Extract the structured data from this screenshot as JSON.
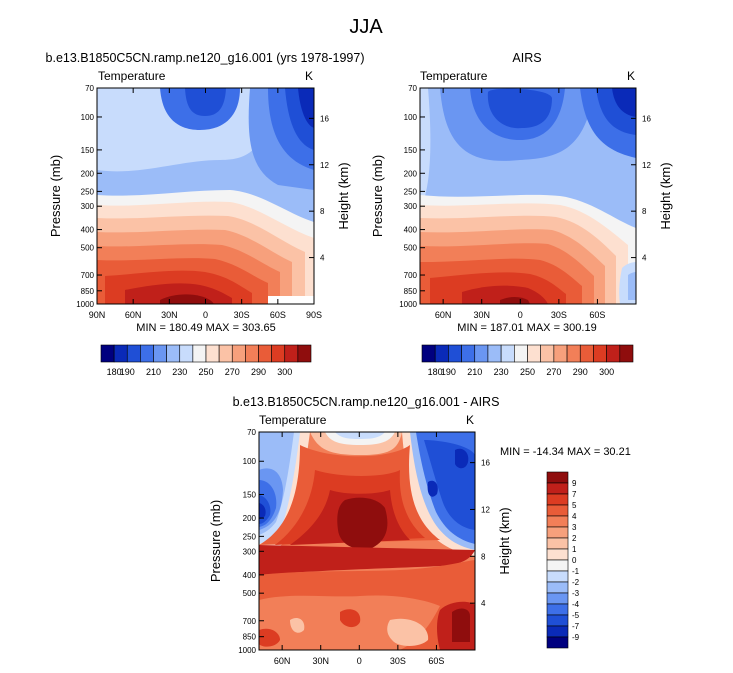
{
  "figure": {
    "title": "JJA"
  },
  "colors": {
    "abs_scale": [
      "#00007f",
      "#0a2ab8",
      "#1f4fd6",
      "#3d6fe8",
      "#6a96f2",
      "#9bbcf8",
      "#c8dcfc",
      "#f4f4f4",
      "#fde0d0",
      "#fbc2a6",
      "#f7a07c",
      "#f27f58",
      "#e95c38",
      "#dc3c22",
      "#c0201a",
      "#8f0d0d"
    ],
    "diff_scale": [
      "#00007f",
      "#0a2ab8",
      "#1f4fd6",
      "#3d6fe8",
      "#6a96f2",
      "#9bbcf8",
      "#c8dcfc",
      "#f4f4f4",
      "#fde0d0",
      "#fbc2a6",
      "#f7a07c",
      "#f27f58",
      "#e95c38",
      "#dc3c22",
      "#c0201a",
      "#8f0d0d"
    ]
  },
  "chart_data": [
    {
      "type": "heatmap",
      "title": "b.e13.B1850C5CN.ramp.ne120_g16.001 (yrs 1978-1997)",
      "left_title": "Temperature",
      "units": "K",
      "ylabel": "Pressure (mb)",
      "y2label": "Height (km)",
      "x_ticks": [
        "90N",
        "60N",
        "30N",
        "0",
        "30S",
        "60S",
        "90S"
      ],
      "x_values": [
        90,
        60,
        30,
        0,
        -30,
        -60,
        -90
      ],
      "xlim": [
        90,
        -90
      ],
      "y_ticks": [
        "70",
        "100",
        "150",
        "200",
        "250",
        "300",
        "400",
        "500",
        "700",
        "850",
        "1000"
      ],
      "y_values": [
        70,
        100,
        150,
        200,
        250,
        300,
        400,
        500,
        700,
        850,
        1000
      ],
      "ylim": [
        1000,
        70
      ],
      "y_scale": "log",
      "y2_ticks": [
        "4",
        "8",
        "12",
        "16"
      ],
      "y2_values": [
        4,
        8,
        12,
        16
      ],
      "stats": "MIN = 180.49   MAX = 303.65",
      "min": 180.49,
      "max": 303.65,
      "colorbar_labels": [
        "180",
        "190",
        "210",
        "230",
        "250",
        "270",
        "290",
        "300"
      ],
      "colorbar_levels": [
        180,
        190,
        200,
        210,
        220,
        230,
        240,
        250,
        260,
        270,
        280,
        285,
        290,
        295,
        300
      ]
    },
    {
      "type": "heatmap",
      "title": "AIRS",
      "left_title": "Temperature",
      "units": "K",
      "ylabel": "Pressure (mb)",
      "y2label": "Height (km)",
      "x_ticks": [
        "60N",
        "30N",
        "0",
        "30S",
        "60S"
      ],
      "x_values": [
        60,
        30,
        0,
        -30,
        -60
      ],
      "xlim": [
        78,
        -90
      ],
      "y_ticks": [
        "70",
        "100",
        "150",
        "200",
        "250",
        "300",
        "400",
        "500",
        "700",
        "850",
        "1000"
      ],
      "y_values": [
        70,
        100,
        150,
        200,
        250,
        300,
        400,
        500,
        700,
        850,
        1000
      ],
      "ylim": [
        1000,
        70
      ],
      "y_scale": "log",
      "y2_ticks": [
        "4",
        "8",
        "12",
        "16"
      ],
      "y2_values": [
        4,
        8,
        12,
        16
      ],
      "stats": "MIN = 187.01   MAX = 300.19",
      "min": 187.01,
      "max": 300.19,
      "colorbar_labels": [
        "180",
        "190",
        "210",
        "230",
        "250",
        "270",
        "290",
        "300"
      ],
      "colorbar_levels": [
        180,
        190,
        200,
        210,
        220,
        230,
        240,
        250,
        260,
        270,
        280,
        285,
        290,
        295,
        300
      ]
    },
    {
      "type": "heatmap",
      "title": "b.e13.B1850C5CN.ramp.ne120_g16.001 - AIRS",
      "left_title": "Temperature",
      "units": "K",
      "ylabel": "Pressure (mb)",
      "y2label": "Height (km)",
      "x_ticks": [
        "60N",
        "30N",
        "0",
        "30S",
        "60S"
      ],
      "x_values": [
        60,
        30,
        0,
        -30,
        -60
      ],
      "xlim": [
        78,
        -90
      ],
      "y_ticks": [
        "70",
        "100",
        "150",
        "200",
        "250",
        "300",
        "400",
        "500",
        "700",
        "850",
        "1000"
      ],
      "y_values": [
        70,
        100,
        150,
        200,
        250,
        300,
        400,
        500,
        700,
        850,
        1000
      ],
      "ylim": [
        1000,
        70
      ],
      "y_scale": "log",
      "y2_ticks": [
        "4",
        "8",
        "12",
        "16"
      ],
      "y2_values": [
        4,
        8,
        12,
        16
      ],
      "stats": "MIN = -14.34   MAX =  30.21",
      "min": -14.34,
      "max": 30.21,
      "colorbar_labels": [
        "9",
        "7",
        "5",
        "4",
        "3",
        "2",
        "1",
        "0",
        "-1",
        "-2",
        "-3",
        "-4",
        "-5",
        "-7",
        "-9"
      ],
      "colorbar_levels": [
        9,
        7,
        5,
        4,
        3,
        2,
        1,
        0,
        -1,
        -2,
        -3,
        -4,
        -5,
        -7,
        -9
      ]
    }
  ]
}
